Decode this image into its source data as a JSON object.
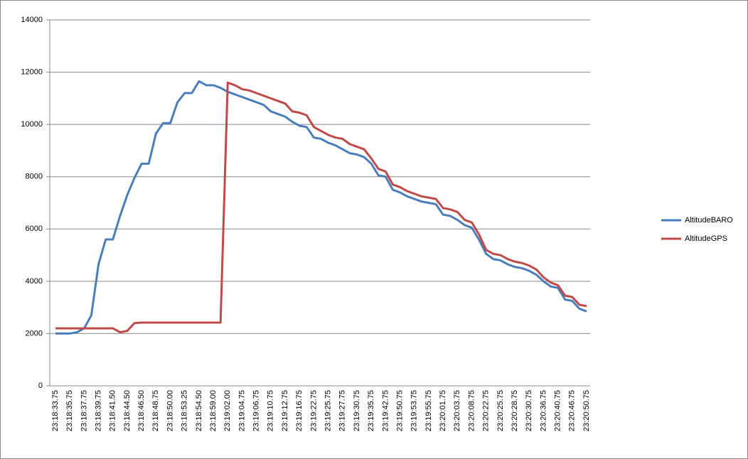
{
  "chart_data": {
    "type": "line",
    "categories": [
      "23:18:33.75",
      null,
      "23:18:35.75",
      null,
      "23:18:37.75",
      null,
      "23:18:39.75",
      null,
      "23:18:41.50",
      null,
      "23:18:44.50",
      null,
      "23:18:46.50",
      null,
      "23:18:48.75",
      null,
      "23:18:50.00",
      null,
      "23:18:53.25",
      null,
      "23:18:54.50",
      null,
      "23:18:59.00",
      null,
      "23:19:02.00",
      null,
      "23:19:04.75",
      null,
      "23:19:06.75",
      null,
      "23:19:10.75",
      null,
      "23:19:12.75",
      null,
      "23:19:16.75",
      null,
      "23:19:22.75",
      null,
      "23:19:25.75",
      null,
      "23:19:27.75",
      null,
      "23:19:30.75",
      null,
      "23:19:35.75",
      null,
      "23:19:42.75",
      null,
      "23:19:50.75",
      null,
      "23:19:53.75",
      null,
      "23:19:55.75",
      null,
      "23:20:01.75",
      null,
      "23:20:03.75",
      null,
      "23:20:08.75",
      null,
      "23:20:22.75",
      null,
      "23:20:25.75",
      null,
      "23:20:28.75",
      null,
      "23:20:30.75",
      null,
      "23:20:36.75",
      null,
      "23:20:40.75",
      null,
      "23:20:46.75",
      null,
      "23:20:50.75"
    ],
    "series": [
      {
        "name": "AltitudeBARO",
        "color": "#4a7ebb",
        "values": [
          2000,
          2000,
          2000,
          2050,
          2200,
          2700,
          4650,
          5600,
          5600,
          6500,
          7300,
          7950,
          8500,
          8500,
          9650,
          10050,
          10050,
          10850,
          11200,
          11200,
          11650,
          11500,
          11500,
          11400,
          11250,
          11150,
          11050,
          10950,
          10850,
          10750,
          10500,
          10400,
          10300,
          10100,
          9950,
          9900,
          9500,
          9450,
          9300,
          9200,
          9050,
          8900,
          8850,
          8750,
          8500,
          8050,
          8000,
          7500,
          7400,
          7250,
          7150,
          7050,
          7000,
          6950,
          6550,
          6500,
          6350,
          6150,
          6050,
          5600,
          5050,
          4850,
          4800,
          4650,
          4550,
          4500,
          4400,
          4250,
          4000,
          3800,
          3750,
          3300,
          3250,
          2950,
          2850
        ]
      },
      {
        "name": "AltitudeGPS",
        "color": "#be4b48",
        "values": [
          2200,
          2200,
          2200,
          2200,
          2200,
          2200,
          2200,
          2200,
          2200,
          2050,
          2100,
          2400,
          2420,
          2420,
          2420,
          2420,
          2420,
          2420,
          2420,
          2420,
          2420,
          2420,
          2420,
          2420,
          11600,
          11500,
          11350,
          11300,
          11200,
          11100,
          11000,
          10900,
          10800,
          10500,
          10450,
          10350,
          9900,
          9750,
          9600,
          9500,
          9450,
          9250,
          9150,
          9050,
          8700,
          8300,
          8200,
          7700,
          7600,
          7450,
          7350,
          7250,
          7200,
          7150,
          6800,
          6750,
          6650,
          6350,
          6250,
          5800,
          5200,
          5050,
          5000,
          4850,
          4750,
          4700,
          4600,
          4450,
          4150,
          3950,
          3850,
          3450,
          3400,
          3100,
          3050
        ]
      }
    ],
    "ylim": [
      0,
      14000
    ],
    "yticks": [
      0,
      2000,
      4000,
      6000,
      8000,
      10000,
      12000,
      14000
    ],
    "grid": true,
    "legend": "right"
  }
}
